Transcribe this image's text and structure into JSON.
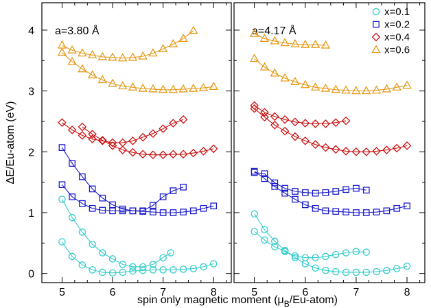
{
  "chart_data": {
    "type": "scatter",
    "xlabel_parts": [
      "spin only magnetic moment  (",
      "μ",
      "B",
      "/Eu-atom)"
    ],
    "ylabel": "ΔE/Eu-atom (eV)",
    "xlim": [
      4.6,
      8.35
    ],
    "ylim": [
      -0.15,
      4.45
    ],
    "x_ticks": [
      5,
      6,
      7,
      8
    ],
    "y_ticks": [
      0,
      1,
      2,
      3,
      4
    ],
    "legend": {
      "position": "top-right",
      "entries": [
        {
          "label": "x=0.1",
          "color": "#33cccc",
          "marker": "circle"
        },
        {
          "label": "x=0.2",
          "color": "#1a1acc",
          "marker": "square"
        },
        {
          "label": "x=0.4",
          "color": "#cc1111",
          "marker": "diamond"
        },
        {
          "label": "x=0.6",
          "color": "#e69a1a",
          "marker": "triangle"
        }
      ]
    },
    "panels": [
      {
        "title": "a=3.80 Å",
        "curves": [
          {
            "group": "x=0.1",
            "x": [
              5.0,
              5.2,
              5.4,
              5.6,
              5.8,
              6.0,
              6.2,
              6.4,
              6.6,
              6.8,
              7.0,
              7.2,
              7.4,
              7.6,
              7.8,
              8.0
            ],
            "y": [
              0.52,
              0.28,
              0.14,
              0.06,
              0.02,
              0.01,
              0.02,
              0.04,
              0.05,
              0.06,
              0.06,
              0.06,
              0.07,
              0.08,
              0.11,
              0.16
            ]
          },
          {
            "group": "x=0.1",
            "x": [
              5.0,
              5.2,
              5.4,
              5.6,
              5.8,
              6.0,
              6.2,
              6.4,
              6.6,
              6.8,
              7.0,
              7.15
            ],
            "y": [
              1.22,
              0.92,
              0.68,
              0.48,
              0.34,
              0.24,
              0.15,
              0.11,
              0.11,
              0.15,
              0.26,
              0.34
            ]
          },
          {
            "group": "x=0.2",
            "x": [
              5.0,
              5.2,
              5.4,
              5.6,
              5.8,
              6.0,
              6.2,
              6.4,
              6.6,
              6.8,
              7.0,
              7.2,
              7.4,
              7.6,
              7.8,
              8.0
            ],
            "y": [
              1.46,
              1.26,
              1.15,
              1.07,
              1.04,
              1.03,
              1.03,
              1.03,
              1.02,
              1.01,
              1.0,
              1.0,
              1.01,
              1.03,
              1.07,
              1.11
            ]
          },
          {
            "group": "x=0.2",
            "x": [
              5.0,
              5.2,
              5.4,
              5.6,
              5.8,
              6.0,
              6.2,
              6.4,
              6.6,
              6.8,
              7.0,
              7.2,
              7.4
            ],
            "y": [
              2.07,
              1.81,
              1.59,
              1.39,
              1.24,
              1.13,
              1.06,
              1.03,
              1.03,
              1.12,
              1.26,
              1.36,
              1.42
            ]
          },
          {
            "group": "x=0.4",
            "x": [
              5.0,
              5.2,
              5.4,
              5.6,
              5.8,
              6.0,
              6.2,
              6.4,
              6.6,
              6.8,
              7.0,
              7.2,
              7.4
            ],
            "y": [
              2.48,
              2.36,
              2.27,
              2.21,
              2.18,
              2.15,
              2.15,
              2.18,
              2.24,
              2.3,
              2.38,
              2.47,
              2.53
            ]
          },
          {
            "group": "x=0.4",
            "x": [
              5.4,
              5.6,
              5.8,
              6.0,
              6.2,
              6.4,
              6.6,
              6.8,
              7.0,
              7.2,
              7.4,
              7.6,
              7.8,
              8.0
            ],
            "y": [
              2.41,
              2.29,
              2.19,
              2.1,
              2.03,
              1.99,
              1.96,
              1.95,
              1.95,
              1.96,
              1.96,
              1.98,
              2.01,
              2.05
            ]
          },
          {
            "group": "x=0.6",
            "x": [
              5.0,
              5.2,
              5.4,
              5.6,
              5.8,
              6.0,
              6.2,
              6.4,
              6.6,
              6.8,
              7.0,
              7.2,
              7.4,
              7.6
            ],
            "y": [
              3.75,
              3.67,
              3.62,
              3.59,
              3.56,
              3.55,
              3.54,
              3.55,
              3.57,
              3.62,
              3.69,
              3.77,
              3.86,
              3.99
            ]
          },
          {
            "group": "x=0.6",
            "x": [
              5.0,
              5.2,
              5.4,
              5.6,
              5.8,
              6.0,
              6.2,
              6.4,
              6.6,
              6.8,
              7.0,
              7.2,
              7.4,
              7.6,
              7.8,
              8.0
            ],
            "y": [
              3.63,
              3.48,
              3.36,
              3.26,
              3.18,
              3.12,
              3.08,
              3.06,
              3.04,
              3.03,
              3.02,
              3.02,
              3.03,
              3.04,
              3.05,
              3.07
            ]
          }
        ]
      },
      {
        "title": "a=4.17 Å",
        "curves": [
          {
            "group": "x=0.1",
            "x": [
              5.0,
              5.2,
              5.4,
              5.6,
              5.8,
              6.0,
              6.2,
              6.4,
              6.6,
              6.8,
              7.0,
              7.2,
              7.4,
              7.6,
              7.8,
              8.0
            ],
            "y": [
              0.98,
              0.72,
              0.53,
              0.38,
              0.26,
              0.16,
              0.09,
              0.05,
              0.03,
              0.02,
              0.02,
              0.02,
              0.03,
              0.05,
              0.08,
              0.12
            ]
          },
          {
            "group": "x=0.1",
            "x": [
              5.0,
              5.2,
              5.4,
              5.6,
              5.8,
              6.0,
              6.2,
              6.4,
              6.6,
              6.8,
              7.0,
              7.2
            ],
            "y": [
              0.69,
              0.55,
              0.44,
              0.36,
              0.29,
              0.26,
              0.26,
              0.28,
              0.31,
              0.34,
              0.36,
              0.35
            ]
          },
          {
            "group": "x=0.2",
            "x": [
              5.0,
              5.2,
              5.4,
              5.6,
              5.8,
              6.0,
              6.2,
              6.4,
              6.6,
              6.8,
              7.0,
              7.2,
              7.4,
              7.6,
              7.8,
              8.0
            ],
            "y": [
              1.68,
              1.56,
              1.43,
              1.32,
              1.22,
              1.13,
              1.07,
              1.03,
              1.02,
              1.01,
              1.0,
              1.0,
              1.01,
              1.03,
              1.07,
              1.11
            ]
          },
          {
            "group": "x=0.2",
            "x": [
              5.0,
              5.2,
              5.4,
              5.6,
              5.8,
              6.0,
              6.2,
              6.4,
              6.6,
              6.8,
              7.0,
              7.2
            ],
            "y": [
              1.66,
              1.64,
              1.49,
              1.4,
              1.35,
              1.33,
              1.32,
              1.33,
              1.35,
              1.38,
              1.4,
              1.37
            ]
          },
          {
            "group": "x=0.4",
            "x": [
              5.0,
              5.2,
              5.4,
              5.6,
              5.8,
              6.0,
              6.2,
              6.4,
              6.6,
              6.8
            ],
            "y": [
              2.76,
              2.65,
              2.58,
              2.53,
              2.49,
              2.47,
              2.46,
              2.46,
              2.48,
              2.51
            ]
          },
          {
            "group": "x=0.4",
            "x": [
              5.0,
              5.2,
              5.4,
              5.6,
              5.8,
              6.0,
              6.2,
              6.4,
              6.6,
              6.8,
              7.0,
              7.2,
              7.4,
              7.6,
              7.8,
              8.0
            ],
            "y": [
              2.71,
              2.57,
              2.44,
              2.34,
              2.25,
              2.18,
              2.12,
              2.07,
              2.04,
              2.01,
              2.0,
              2.0,
              2.01,
              2.03,
              2.06,
              2.1
            ]
          },
          {
            "group": "x=0.6",
            "x": [
              5.0,
              5.2,
              5.4,
              5.6,
              5.8,
              6.0,
              6.2,
              6.4
            ],
            "y": [
              3.94,
              3.86,
              3.82,
              3.79,
              3.77,
              3.76,
              3.76,
              3.75
            ]
          },
          {
            "group": "x=0.6",
            "x": [
              5.0,
              5.2,
              5.4,
              5.6,
              5.8,
              6.0,
              6.2,
              6.4,
              6.6,
              6.8,
              7.0,
              7.2,
              7.4,
              7.6,
              7.8,
              8.0
            ],
            "y": [
              3.53,
              3.39,
              3.29,
              3.21,
              3.15,
              3.1,
              3.06,
              3.04,
              3.02,
              3.01,
              3.0,
              3.0,
              3.01,
              3.03,
              3.06,
              3.09
            ]
          }
        ]
      }
    ]
  }
}
